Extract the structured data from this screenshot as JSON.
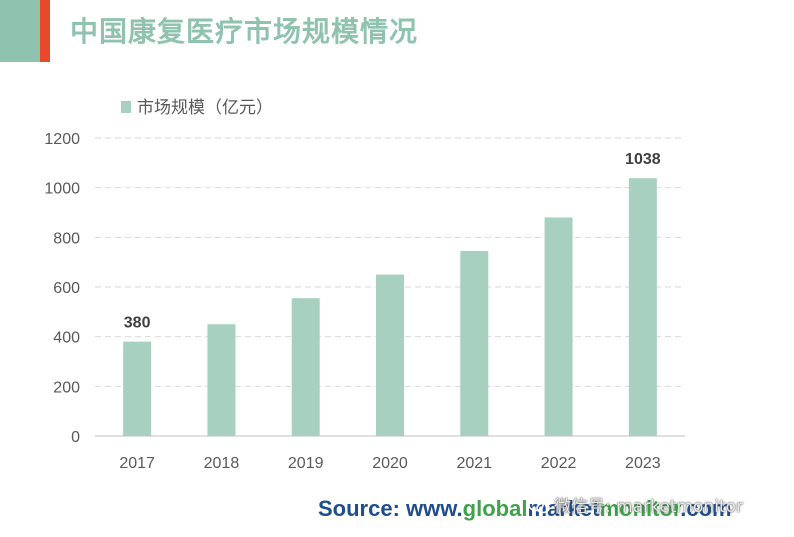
{
  "page": {
    "title": "中国康复医疗市场规模情况",
    "colors": {
      "accent_green": "#8fc3b0",
      "accent_red": "#e8492c",
      "bar": "#a7d0c0"
    }
  },
  "chart_data": {
    "type": "bar",
    "categories": [
      "2017",
      "2018",
      "2019",
      "2020",
      "2021",
      "2022",
      "2023"
    ],
    "series": [
      {
        "name": "市场规模（亿元）",
        "values": [
          380,
          450,
          555,
          650,
          745,
          880,
          1038
        ]
      }
    ],
    "data_labels": [
      {
        "category": "2017",
        "text": "380"
      },
      {
        "category": "2023",
        "text": "1038"
      }
    ],
    "ylim": [
      0,
      1200
    ],
    "yticks": [
      0,
      200,
      400,
      600,
      800,
      1000,
      1200
    ],
    "grid": true,
    "legend_position": "top-left"
  },
  "footer": {
    "source_prefix": "Source: www.",
    "source_green": "global",
    "source_mid": "market",
    "source_green2": "monitor",
    "source_suffix": ".com",
    "watermark_text": "微信号: marketmonitor",
    "watermark_icon": "wechat-icon"
  }
}
